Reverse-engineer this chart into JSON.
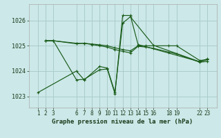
{
  "bg_color": "#cce8e8",
  "grid_color": "#aacccc",
  "line_color": "#1a5c1a",
  "xlabel": "Graphe pression niveau de la mer (hPa)",
  "ylim": [
    1022.55,
    1026.65
  ],
  "xlim": [
    -0.2,
    24.2
  ],
  "xticks": [
    1,
    2,
    3,
    6,
    7,
    8,
    9,
    10,
    11,
    12,
    13,
    14,
    15,
    16,
    18,
    19,
    22,
    23
  ],
  "yticks": [
    1023,
    1024,
    1025,
    1026
  ],
  "tick_fontsize": 5.5,
  "xlabel_fontsize": 6.5,
  "series": [
    {
      "x": [
        2,
        3,
        6,
        7,
        8,
        9,
        10,
        11,
        12,
        13,
        14,
        15,
        16,
        18,
        19,
        22,
        23
      ],
      "y": [
        1025.2,
        1025.2,
        1025.1,
        1025.1,
        1025.07,
        1025.04,
        1025.0,
        1024.92,
        1024.85,
        1024.8,
        1025.0,
        1025.0,
        1025.0,
        1025.0,
        1025.0,
        1024.42,
        1024.45
      ]
    },
    {
      "x": [
        2,
        3,
        6,
        7,
        8,
        9,
        10,
        11,
        12,
        13,
        14,
        15,
        16,
        18,
        19,
        22,
        23
      ],
      "y": [
        1025.2,
        1025.2,
        1025.08,
        1025.1,
        1025.05,
        1025.0,
        1024.95,
        1024.85,
        1024.78,
        1024.72,
        1024.98,
        1024.95,
        1024.9,
        1024.75,
        1024.68,
        1024.35,
        1024.38
      ]
    },
    {
      "x": [
        2,
        3,
        6,
        7,
        9,
        10,
        11,
        12,
        13,
        14,
        22,
        23
      ],
      "y": [
        1025.2,
        1025.2,
        1023.65,
        1023.67,
        1024.05,
        1024.08,
        1023.1,
        1026.2,
        1026.2,
        1025.05,
        1024.37,
        1024.45
      ]
    },
    {
      "x": [
        1,
        6,
        7,
        9,
        10,
        11,
        12,
        13,
        16,
        22,
        23
      ],
      "y": [
        1023.15,
        1024.0,
        1023.65,
        1024.18,
        1024.12,
        1023.15,
        1025.9,
        1026.15,
        1025.02,
        1024.37,
        1024.48
      ]
    }
  ]
}
